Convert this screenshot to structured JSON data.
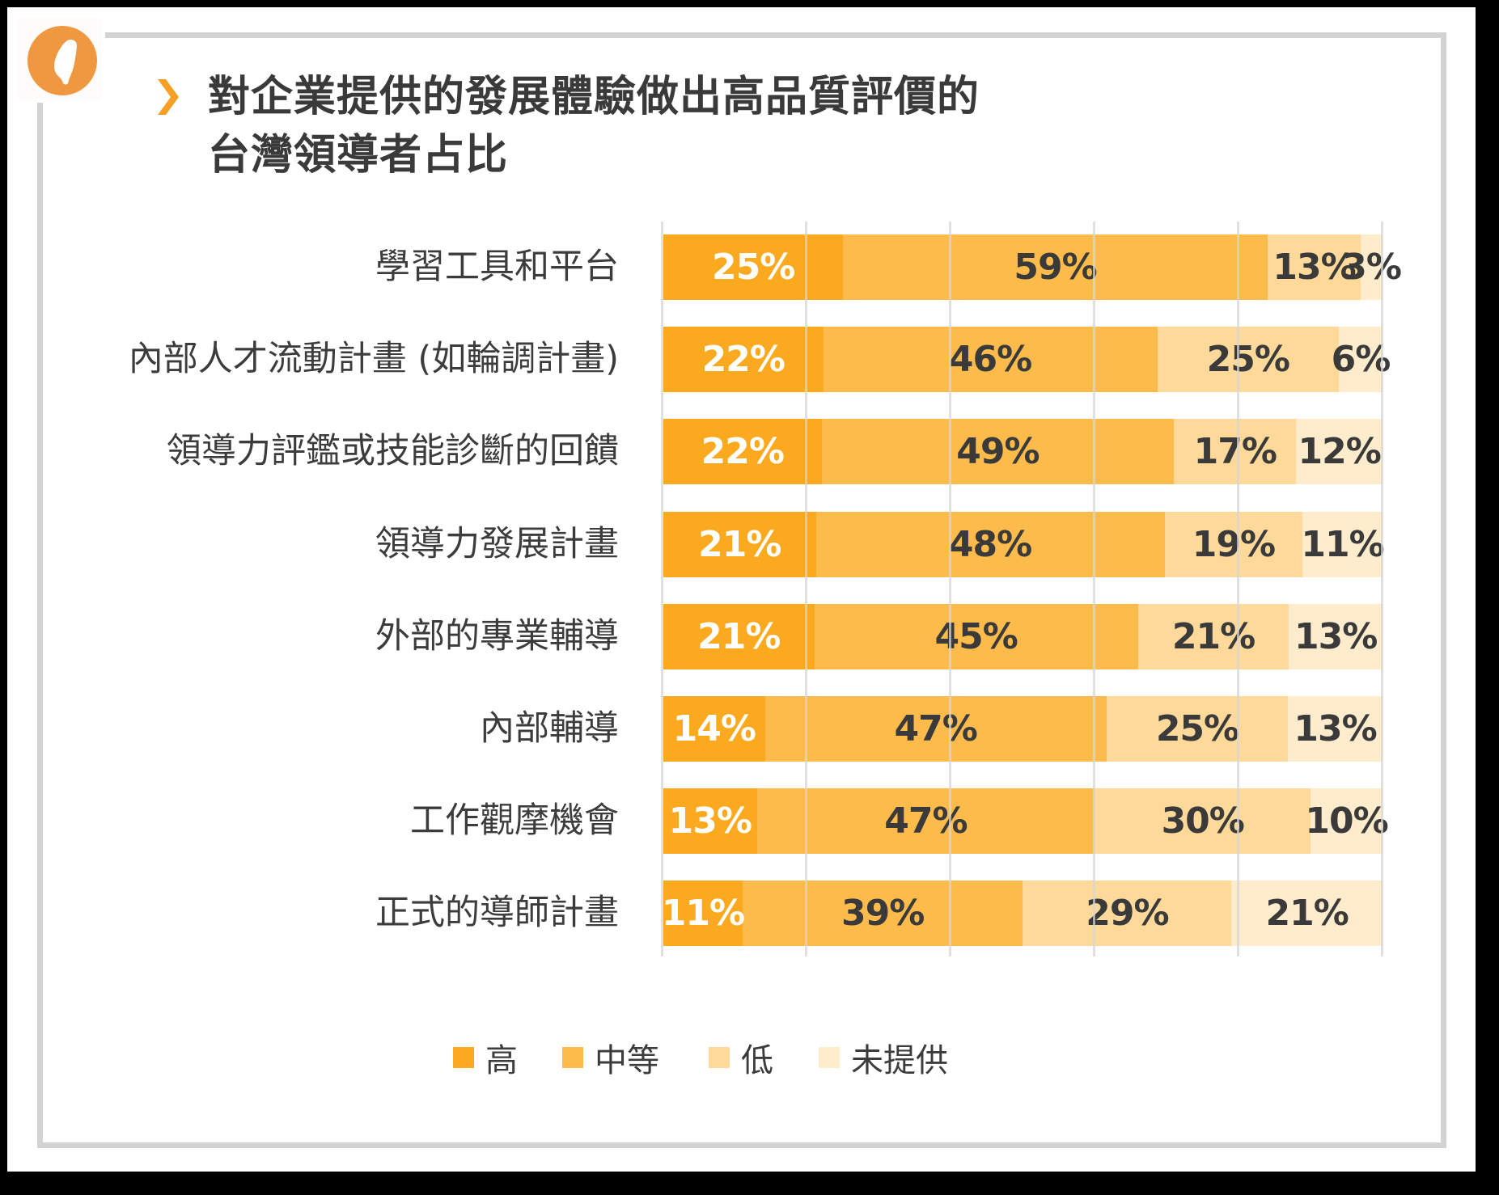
{
  "header": {
    "logo_icon": "taiwan-map-icon",
    "chevron_icon": "chevron-right-icon",
    "title_line1": "對企業提供的發展體驗做出高品質評價的",
    "title_line2": "台灣領導者占比"
  },
  "colors": {
    "high": "#fba91f",
    "medium": "#fdbb4c",
    "low": "#fed999",
    "not_provided": "#feeccc",
    "logo": "#f0983f",
    "chevron": "#f5a024",
    "frame": "#d3d3d3",
    "grid": "#d6d6d6",
    "text": "#3a3a3a"
  },
  "legend": [
    {
      "label": "高",
      "color": "#fba91f"
    },
    {
      "label": "中等",
      "color": "#fdbb4c"
    },
    {
      "label": "低",
      "color": "#fed999"
    },
    {
      "label": "未提供",
      "color": "#feeccc"
    }
  ],
  "rows": [
    {
      "label": "學習工具和平台",
      "values": [
        "25%",
        "59%",
        "13%",
        "3%"
      ]
    },
    {
      "label": "內部人才流動計畫 (如輪調計畫)",
      "values": [
        "22%",
        "46%",
        "25%",
        "6%"
      ]
    },
    {
      "label": "領導力評鑑或技能診斷的回饋",
      "values": [
        "22%",
        "49%",
        "17%",
        "12%"
      ]
    },
    {
      "label": "領導力發展計畫",
      "values": [
        "21%",
        "48%",
        "19%",
        "11%"
      ]
    },
    {
      "label": "外部的專業輔導",
      "values": [
        "21%",
        "45%",
        "21%",
        "13%"
      ]
    },
    {
      "label": "內部輔導",
      "values": [
        "14%",
        "47%",
        "25%",
        "13%"
      ]
    },
    {
      "label": "工作觀摩機會",
      "values": [
        "13%",
        "47%",
        "30%",
        "10%"
      ]
    },
    {
      "label": "正式的導師計畫",
      "values": [
        "11%",
        "39%",
        "29%",
        "21%"
      ]
    }
  ],
  "chart_data": {
    "type": "bar",
    "orientation": "horizontal",
    "stacked": true,
    "title": "對企業提供的發展體驗做出高品質評價的台灣領導者占比",
    "xlabel": "",
    "ylabel": "",
    "xlim": [
      0,
      100
    ],
    "grid": true,
    "gridlines_x": [
      0,
      20,
      40,
      60,
      80,
      100
    ],
    "legend_position": "bottom",
    "categories": [
      "學習工具和平台",
      "內部人才流動計畫 (如輪調計畫)",
      "領導力評鑑或技能診斷的回饋",
      "領導力發展計畫",
      "外部的專業輔導",
      "內部輔導",
      "工作觀摩機會",
      "正式的導師計畫"
    ],
    "series": [
      {
        "name": "高",
        "color": "#fba91f",
        "values": [
          25,
          22,
          22,
          21,
          21,
          14,
          13,
          11
        ]
      },
      {
        "name": "中等",
        "color": "#fdbb4c",
        "values": [
          59,
          46,
          49,
          48,
          45,
          47,
          47,
          39
        ]
      },
      {
        "name": "低",
        "color": "#fed999",
        "values": [
          13,
          25,
          17,
          19,
          21,
          25,
          30,
          29
        ]
      },
      {
        "name": "未提供",
        "color": "#feeccc",
        "values": [
          3,
          6,
          12,
          11,
          13,
          13,
          10,
          21
        ]
      }
    ],
    "value_labels": true,
    "value_format": "{v}%"
  }
}
